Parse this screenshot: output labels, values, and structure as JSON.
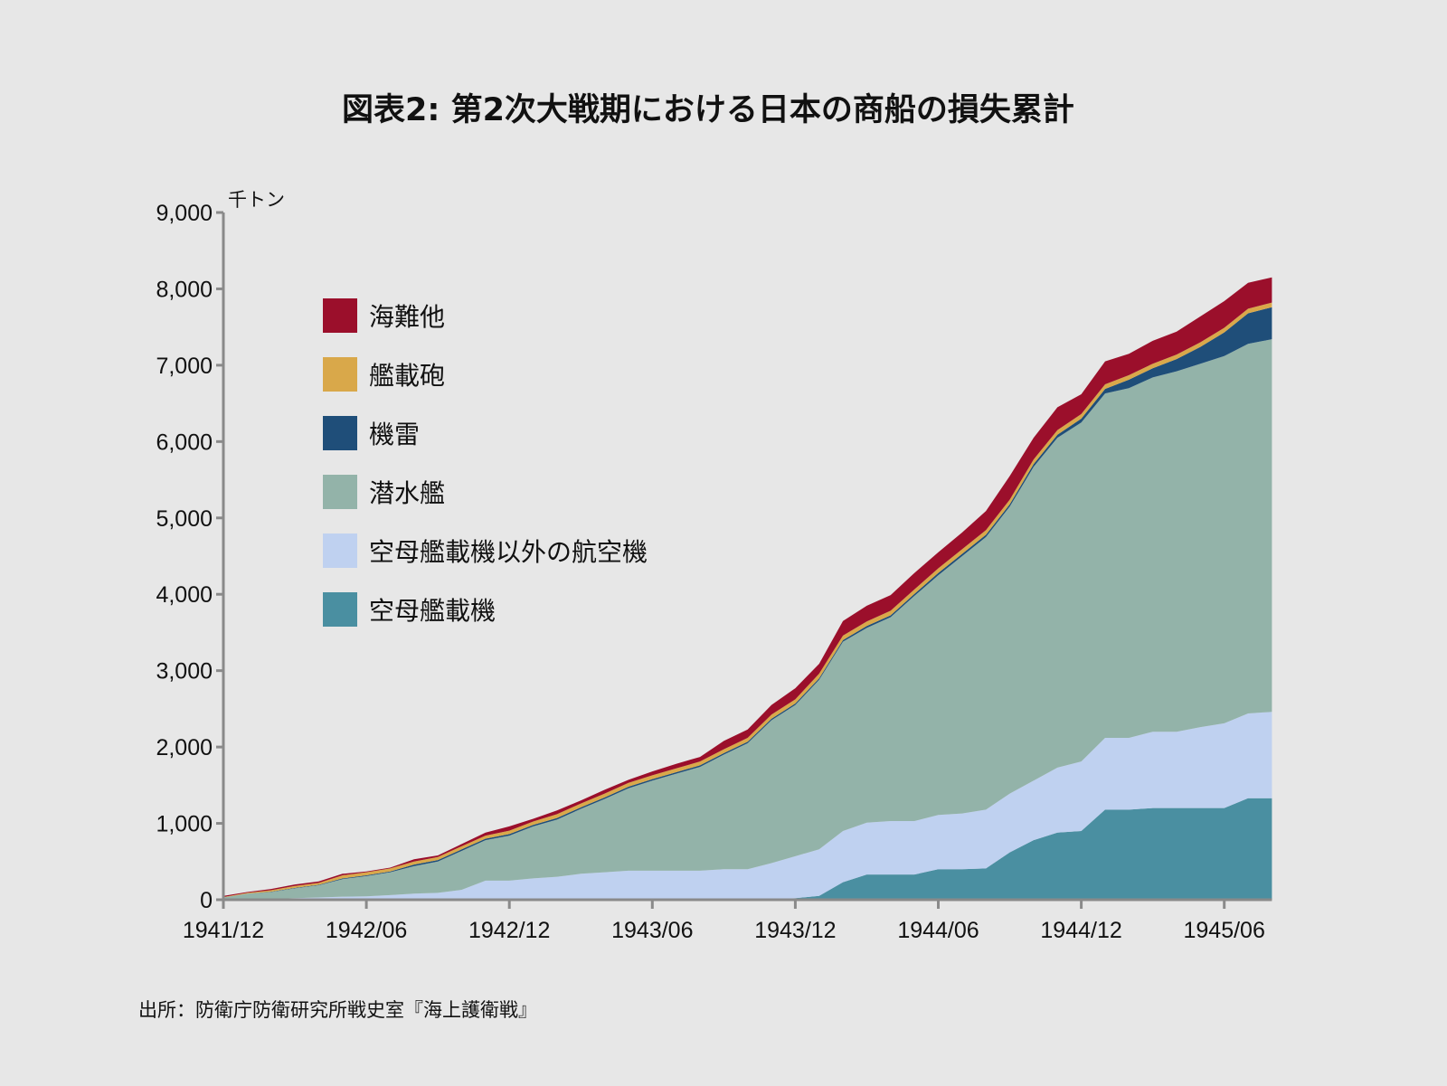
{
  "chart_data": {
    "type": "area",
    "stacked": true,
    "title": "図表2: 第2次大戦期における日本の商船の損失累計",
    "ylabel": "千トン",
    "xlabel": "",
    "ylim": [
      0,
      9000
    ],
    "yticks": [
      0,
      1000,
      2000,
      3000,
      4000,
      5000,
      6000,
      7000,
      8000,
      9000
    ],
    "ytick_labels": [
      "0",
      "1,000",
      "2,000",
      "3,000",
      "4,000",
      "5,000",
      "6,000",
      "7,000",
      "8,000",
      "9,000"
    ],
    "x_start": "1941/12",
    "x_end": "1945/08",
    "x_interval": "monthly",
    "xtick_labels": [
      "1941/12",
      "1942/06",
      "1942/12",
      "1943/06",
      "1943/12",
      "1944/06",
      "1944/12",
      "1945/06"
    ],
    "xtick_index": [
      0,
      6,
      12,
      18,
      24,
      30,
      36,
      42
    ],
    "grid": false,
    "legend_placement": "top-left",
    "series": [
      {
        "name": "空母艦載機",
        "color": "#4a8fa1",
        "values": [
          0,
          0,
          0,
          0,
          0,
          0,
          0,
          0,
          0,
          0,
          0,
          0,
          0,
          0,
          0,
          0,
          0,
          0,
          0,
          0,
          0,
          0,
          0,
          0,
          20,
          50,
          230,
          330,
          330,
          330,
          400,
          400,
          410,
          620,
          780,
          880,
          900,
          1180,
          1180,
          1200,
          1200,
          1200,
          1200,
          1330,
          1330
        ]
      },
      {
        "name": "空母艦載機以外の航空機",
        "color": "#bfd1f0",
        "values": [
          0,
          5,
          10,
          20,
          30,
          40,
          45,
          60,
          80,
          90,
          130,
          250,
          250,
          280,
          300,
          340,
          360,
          380,
          380,
          380,
          380,
          400,
          400,
          480,
          550,
          610,
          670,
          680,
          700,
          700,
          710,
          730,
          770,
          770,
          780,
          850,
          910,
          940,
          940,
          1000,
          1000,
          1060,
          1110,
          1110,
          1130
        ]
      },
      {
        "name": "潜水艦",
        "color": "#93b3a9",
        "values": [
          30,
          75,
          90,
          130,
          160,
          230,
          265,
          300,
          360,
          410,
          510,
          530,
          590,
          680,
          750,
          850,
          960,
          1080,
          1180,
          1270,
          1360,
          1500,
          1650,
          1870,
          1980,
          2220,
          2480,
          2550,
          2670,
          2950,
          3140,
          3370,
          3570,
          3760,
          4110,
          4320,
          4440,
          4510,
          4580,
          4640,
          4720,
          4760,
          4810,
          4840,
          4880
        ]
      },
      {
        "name": "機雷",
        "color": "#1f4e79",
        "values": [
          0,
          0,
          5,
          5,
          5,
          10,
          10,
          10,
          20,
          20,
          20,
          20,
          20,
          20,
          20,
          20,
          20,
          20,
          20,
          20,
          20,
          20,
          20,
          20,
          20,
          20,
          20,
          25,
          25,
          25,
          30,
          30,
          30,
          30,
          35,
          40,
          50,
          60,
          110,
          120,
          160,
          220,
          310,
          400,
          420
        ]
      },
      {
        "name": "艦載砲",
        "color": "#d9a84a",
        "values": [
          5,
          10,
          20,
          25,
          25,
          40,
          40,
          40,
          40,
          40,
          40,
          40,
          45,
          45,
          50,
          50,
          50,
          50,
          50,
          50,
          50,
          50,
          50,
          55,
          55,
          60,
          60,
          60,
          60,
          60,
          60,
          60,
          60,
          60,
          60,
          60,
          60,
          60,
          60,
          60,
          60,
          60,
          60,
          60,
          60
        ]
      },
      {
        "name": "海難他",
        "color": "#9b0f2b",
        "values": [
          15,
          10,
          15,
          20,
          20,
          20,
          10,
          10,
          30,
          20,
          30,
          40,
          55,
          35,
          50,
          40,
          50,
          40,
          50,
          60,
          60,
          110,
          110,
          125,
          145,
          130,
          190,
          205,
          205,
          215,
          210,
          220,
          250,
          310,
          285,
          300,
          260,
          300,
          280,
          300,
          300,
          340,
          350,
          340,
          330
        ]
      }
    ],
    "source": "出所：防衛庁防衛研究所戦史室『海上護衛戦』"
  }
}
